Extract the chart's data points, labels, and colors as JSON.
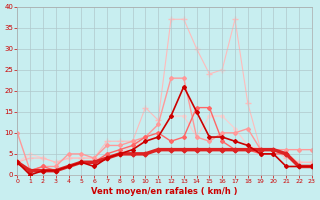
{
  "xlabel": "Vent moyen/en rafales ( km/h )",
  "ylabel": "",
  "xlim": [
    0,
    23
  ],
  "ylim": [
    0,
    40
  ],
  "yticks": [
    0,
    5,
    10,
    15,
    20,
    25,
    30,
    35,
    40
  ],
  "xticks": [
    0,
    1,
    2,
    3,
    4,
    5,
    6,
    7,
    8,
    9,
    10,
    11,
    12,
    13,
    14,
    15,
    16,
    17,
    18,
    19,
    20,
    21,
    22,
    23
  ],
  "background_color": "#c8eef0",
  "grid_color": "#b0c8cc",
  "series": [
    {
      "x": [
        0,
        1,
        2,
        3,
        4,
        5,
        6,
        7,
        8,
        9,
        10,
        11,
        12,
        13,
        14,
        15,
        16,
        17,
        18,
        19,
        20,
        21,
        22,
        23
      ],
      "y": [
        3,
        0,
        1,
        1,
        2,
        3,
        2,
        4,
        5,
        6,
        8,
        9,
        14,
        21,
        15,
        9,
        9,
        8,
        7,
        5,
        5,
        2,
        2,
        2
      ],
      "color": "#cc0000",
      "linewidth": 1.2,
      "marker": "D",
      "markersize": 2.0,
      "zorder": 5
    },
    {
      "x": [
        0,
        1,
        2,
        3,
        4,
        5,
        6,
        7,
        8,
        9,
        10,
        11,
        12,
        13,
        14,
        15,
        16,
        17,
        18,
        19,
        20,
        21,
        22,
        23
      ],
      "y": [
        3,
        1,
        1,
        1,
        2,
        3,
        3,
        4,
        5,
        5,
        5,
        6,
        6,
        6,
        6,
        6,
        6,
        6,
        6,
        6,
        6,
        5,
        2,
        2
      ],
      "color": "#dd2222",
      "linewidth": 2.5,
      "marker": "D",
      "markersize": 2.5,
      "zorder": 4
    },
    {
      "x": [
        0,
        1,
        2,
        3,
        4,
        5,
        6,
        7,
        8,
        9,
        10,
        11,
        12,
        13,
        14,
        15,
        16,
        17,
        18,
        19,
        20,
        21,
        22,
        23
      ],
      "y": [
        3,
        1,
        2,
        1,
        2,
        3,
        3,
        5,
        6,
        7,
        9,
        10,
        8,
        9,
        16,
        16,
        8,
        6,
        6,
        5,
        5,
        5,
        2,
        2
      ],
      "color": "#ff6666",
      "linewidth": 1.0,
      "marker": "D",
      "markersize": 2.0,
      "zorder": 3
    },
    {
      "x": [
        0,
        1,
        2,
        3,
        4,
        5,
        6,
        7,
        8,
        9,
        10,
        11,
        12,
        13,
        14,
        15,
        16,
        17,
        18,
        19,
        20,
        21,
        22,
        23
      ],
      "y": [
        10,
        1,
        2,
        2,
        5,
        5,
        4,
        7,
        7,
        8,
        9,
        12,
        23,
        23,
        9,
        8,
        10,
        10,
        11,
        6,
        6,
        6,
        6,
        6
      ],
      "color": "#ff9999",
      "linewidth": 1.0,
      "marker": "D",
      "markersize": 2.0,
      "zorder": 2
    },
    {
      "x": [
        0,
        1,
        2,
        3,
        4,
        5,
        6,
        7,
        8,
        9,
        10,
        11,
        12,
        13,
        14,
        15,
        16,
        17,
        18,
        19,
        20,
        21,
        22,
        23
      ],
      "y": [
        3,
        4,
        4,
        3,
        4,
        4,
        4,
        8,
        8,
        8,
        16,
        13,
        37,
        37,
        30,
        24,
        25,
        37,
        17,
        6,
        6,
        4,
        3,
        3
      ],
      "color": "#ffbbbb",
      "linewidth": 0.8,
      "marker": "+",
      "markersize": 4.0,
      "zorder": 1
    },
    {
      "x": [
        0,
        1,
        2,
        3,
        4,
        5,
        6,
        7,
        8,
        9,
        10,
        11,
        12,
        13,
        14,
        15,
        16,
        17,
        18,
        19,
        20,
        21,
        22,
        23
      ],
      "y": [
        3,
        5,
        4,
        3,
        4,
        4,
        4,
        4,
        5,
        7,
        8,
        9,
        14,
        14,
        9,
        14,
        14,
        11,
        7,
        6,
        6,
        5,
        3,
        3
      ],
      "color": "#ffcccc",
      "linewidth": 0.8,
      "marker": "D",
      "markersize": 1.8,
      "zorder": 0
    }
  ]
}
